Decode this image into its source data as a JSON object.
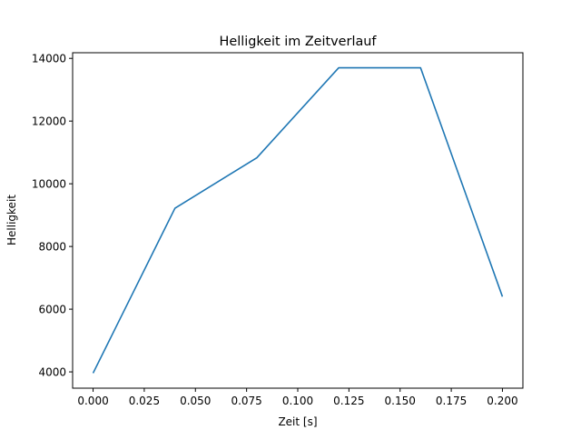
{
  "chart_data": {
    "type": "line",
    "title": "Helligkeit im Zeitverlauf",
    "xlabel": "Zeit [s]",
    "ylabel": "Helligkeit",
    "xlim": [
      -0.01,
      0.21
    ],
    "ylim": [
      3480,
      14180
    ],
    "xticks": [
      0.0,
      0.025,
      0.05,
      0.075,
      0.1,
      0.125,
      0.15,
      0.175,
      0.2
    ],
    "xtick_labels": [
      "0.000",
      "0.025",
      "0.050",
      "0.075",
      "0.100",
      "0.125",
      "0.150",
      "0.175",
      "0.200"
    ],
    "yticks": [
      4000,
      6000,
      8000,
      10000,
      12000,
      14000
    ],
    "ytick_labels": [
      "4000",
      "6000",
      "8000",
      "10000",
      "12000",
      "14000"
    ],
    "grid": false,
    "series": [
      {
        "name": "Helligkeit",
        "color": "#1f77b4",
        "x": [
          0.0,
          0.04,
          0.08,
          0.12,
          0.16,
          0.2
        ],
        "y": [
          3960,
          9220,
          10830,
          13700,
          13700,
          6400
        ]
      }
    ]
  }
}
